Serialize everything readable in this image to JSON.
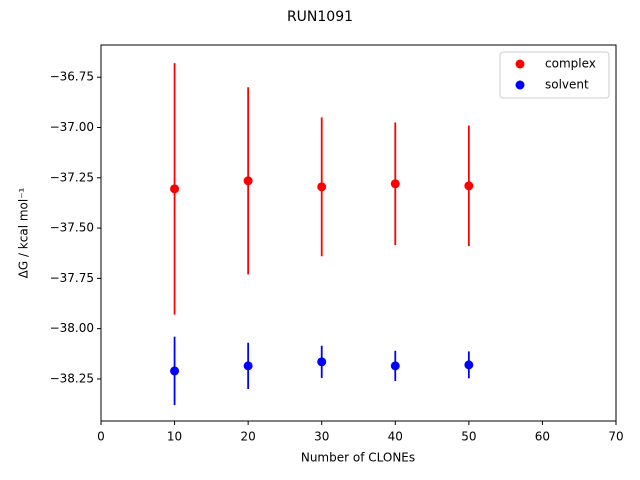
{
  "chart_data": {
    "type": "scatter",
    "title": "RUN1091",
    "xlabel": "Number of CLONEs",
    "ylabel": "ΔG / kcal mol⁻¹",
    "x": [
      10,
      20,
      30,
      40,
      50
    ],
    "series": [
      {
        "name": "complex",
        "color": "#ff0000",
        "values": [
          -37.305,
          -37.265,
          -37.295,
          -37.28,
          -37.29
        ],
        "errors": [
          0.625,
          0.465,
          0.345,
          0.305,
          0.3
        ]
      },
      {
        "name": "solvent",
        "color": "#0000ff",
        "values": [
          -38.21,
          -38.185,
          -38.165,
          -38.185,
          -38.18
        ],
        "errors": [
          0.17,
          0.115,
          0.08,
          0.075,
          0.067
        ]
      }
    ],
    "xlim": [
      0,
      70
    ],
    "xticks": [
      0,
      10,
      20,
      30,
      40,
      50,
      60,
      70
    ],
    "ylim": [
      -38.459,
      -36.59
    ],
    "yticks": [
      {
        "value": -36.75,
        "label": "−36.75"
      },
      {
        "value": -37.0,
        "label": "−37.00"
      },
      {
        "value": -37.25,
        "label": "−37.25"
      },
      {
        "value": -37.5,
        "label": "−37.50"
      },
      {
        "value": -37.75,
        "label": "−37.75"
      },
      {
        "value": -38.0,
        "label": "−38.00"
      },
      {
        "value": -38.25,
        "label": "−38.25"
      }
    ],
    "legend": "upper right",
    "grid": false
  }
}
